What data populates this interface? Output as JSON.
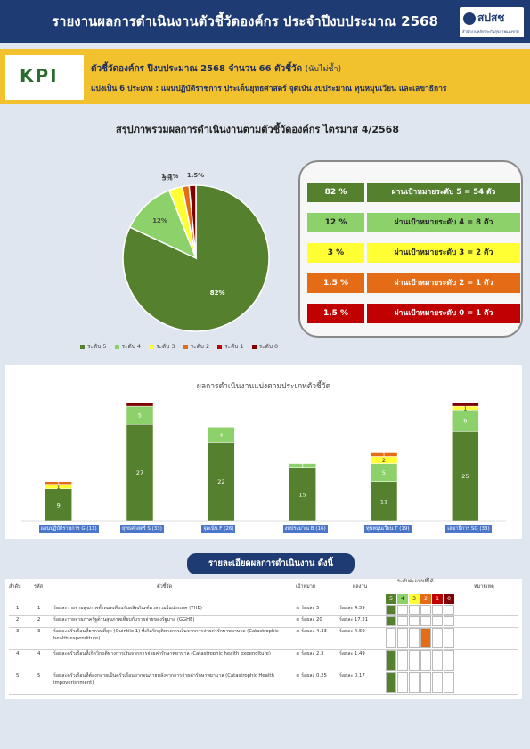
{
  "header": {
    "title": "รายงานผลการดำเนินงานตัวชี้วัดองค์กร ประจำปีงบประมาณ 2568",
    "logo_text": "สปสช",
    "logo_subtext": "สำนักงานหลักประกันสุขภาพแห่งชาติ"
  },
  "kpi": {
    "badge": "KPI",
    "line1": "ตัวชี้วัดองค์กร ปีงบประมาณ 2568 จำนวน 66 ตัวชี้วัด",
    "line1_note": "(นับไม่ซ้ำ)",
    "line2": "แบ่งเป็น 6 ประเภท :  แผนปฏิบัติราชการ ประเด็นยุทธศาสตร์ จุดเน้น งบประมาณ ทุนหมุนเวียน และเลขาธิการ"
  },
  "summary": {
    "title": "สรุปภาพรวมผลการดำเนินงานตามตัวชี้วัดองค์กร ไตรมาส 4/2568"
  },
  "colors": {
    "l5": "#55812e",
    "l4": "#8dd16b",
    "l3": "#ffff33",
    "l2": "#e46c17",
    "l1": "#c00000",
    "l0": "#7f0000"
  },
  "chart_data": [
    {
      "type": "pie",
      "categories": [
        "ระดับ 5",
        "ระดับ 4",
        "ระดับ 3",
        "ระดับ 2",
        "ระดับ 1",
        "ระดับ 0"
      ],
      "values": [
        82,
        12,
        3,
        1.5,
        0,
        1.5
      ],
      "data_labels": [
        "82%",
        "12%",
        "3%",
        "1.5%",
        "",
        "1.5%"
      ],
      "legend": "bottom"
    },
    {
      "type": "bar",
      "stacked": true,
      "title": "ผลการดำเนินงานแบ่งตามประเภทตัวชี้วัด",
      "categories": [
        "แผนปฏิบัติราชการ G (11)",
        "ยุทธศาสตร์ S (33)",
        "จุดเน้น F (26)",
        "งบประมาณ B (16)",
        "ทุนหมุนเวียน T (19)",
        "เลขาธิการ SG (33)"
      ],
      "series": [
        {
          "name": "ระดับ 5",
          "values": [
            9,
            27,
            22,
            15,
            11,
            25
          ]
        },
        {
          "name": "ระดับ 4",
          "values": [
            0,
            5,
            4,
            1,
            5,
            6
          ]
        },
        {
          "name": "ระดับ 3",
          "values": [
            1,
            0,
            0,
            0,
            2,
            1
          ]
        },
        {
          "name": "ระดับ 2",
          "values": [
            1,
            0,
            0,
            0,
            1,
            0
          ]
        },
        {
          "name": "ระดับ 1",
          "values": [
            0,
            0,
            0,
            0,
            0,
            0
          ]
        },
        {
          "name": "ระดับ 0",
          "values": [
            0,
            1,
            0,
            0,
            0,
            1
          ]
        }
      ],
      "data_labels": [
        [
          "9",
          "27",
          "22",
          "15",
          "11",
          "25"
        ],
        [
          "",
          "5",
          "4",
          "1",
          "5",
          "6"
        ],
        [
          "1",
          "",
          "",
          "",
          "2",
          "1"
        ],
        [
          "1",
          "",
          "",
          "",
          "1",
          ""
        ],
        [
          "",
          "",
          "",
          "",
          "",
          ""
        ],
        [
          "",
          "",
          "",
          "",
          "",
          ""
        ]
      ],
      "ylim": [
        0,
        36
      ]
    }
  ],
  "panel_rows": [
    {
      "pct": "82 %",
      "desc": "ผ่านเป้าหมายระดับ 5 = 54 ตัว"
    },
    {
      "pct": "12  %",
      "desc": "ผ่านเป้าหมายระดับ 4 =  8 ตัว"
    },
    {
      "pct": "3 %",
      "desc": "ผ่านเป้าหมายระดับ 3 =  2 ตัว"
    },
    {
      "pct": "1.5 %",
      "desc": "ผ่านเป้าหมายระดับ 2 =  1 ตัว"
    },
    {
      "pct": "1.5 %",
      "desc": "ผ่านเป้าหมายระดับ 0 =  1 ตัว"
    }
  ],
  "details": {
    "button": "รายละเอียดผลการดำเนินงาน ดังนี้",
    "headers": {
      "order": "ลำดับ",
      "code": "รหัส",
      "indicator": "ตัวชี้วัด",
      "target": "เป้าหมาย",
      "result": "ผลงาน",
      "levels": "ระดับคะแนนที่ได้",
      "remark": "หมายเหตุ"
    },
    "level_heads": [
      "5",
      "4",
      "3",
      "2",
      "1",
      "0"
    ],
    "rows": [
      {
        "order": "1",
        "code": "1",
        "indicator": "ร้อยละรายจ่ายสุขภาพทั้งหมดเทียบกับผลิตภัณฑ์มวลรวมในประเทศ (THE)",
        "target": "≤ ร้อยละ 5",
        "result": "ร้อยละ 4.59",
        "level": 5
      },
      {
        "order": "2",
        "code": "2",
        "indicator": "ร้อยละรายจ่ายภาครัฐด้านสุขภาพเทียบกับรายจ่ายของรัฐบาล (GGHE)",
        "target": "≤ ร้อยละ 20",
        "result": "ร้อยละ 17.21",
        "level": 5
      },
      {
        "order": "3",
        "code": "3",
        "indicator": "ร้อยละครัวเรือนที่ยากจนที่สุด (Quintile 1) ที่เกิดวิกฤติทางการเงินจากการจ่ายค่ารักษาพยาบาล (Catastrophic health expenditure)",
        "target": "≤ ร้อยละ 4.33",
        "result": "ร้อยละ 4.59",
        "level": 2
      },
      {
        "order": "4",
        "code": "4",
        "indicator": "ร้อยละครัวเรือนที่เกิดวิกฤติทางการเงินจากการจ่ายค่ารักษาพยาบาล (Catastrophic health expenditure)",
        "target": "≤ ร้อยละ 2.3",
        "result": "ร้อยละ 1.49",
        "level": 5
      },
      {
        "order": "5",
        "code": "5",
        "indicator": "ร้อยละครัวเรือนที่ต้องกลายเป็นครัวเรือนยากจนภายหลังจากการจ่ายค่ารักษาพยาบาล (Catastrophic Health impoverishment)",
        "target": "≤ ร้อยละ 0.25",
        "result": "ร้อยละ 0.17",
        "level": 5
      }
    ]
  }
}
